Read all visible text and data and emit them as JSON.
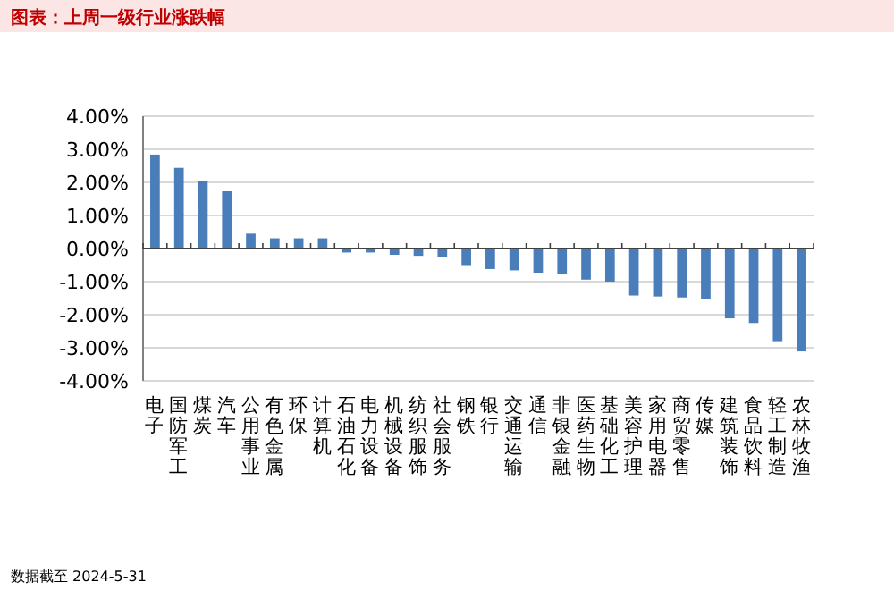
{
  "chart_data": {
    "type": "bar",
    "title": "图表：上周一级行业涨跌幅",
    "categories": [
      "电子",
      "国防军工",
      "煤炭",
      "汽车",
      "公用事业",
      "有色金属",
      "环保",
      "计算机",
      "石油石化",
      "电力设备",
      "机械设备",
      "纺织服饰",
      "社会服务",
      "钢铁",
      "银行",
      "交通运输",
      "通信",
      "非银金融",
      "医药生物",
      "基础化工",
      "美容护理",
      "家用电器",
      "商贸零售",
      "传媒",
      "建筑装饰",
      "食品饮料",
      "轻工制造",
      "农林牧渔"
    ],
    "values": [
      2.84,
      2.44,
      2.05,
      1.73,
      0.45,
      0.31,
      0.31,
      0.31,
      -0.12,
      -0.12,
      -0.19,
      -0.22,
      -0.25,
      -0.5,
      -0.62,
      -0.66,
      -0.73,
      -0.77,
      -0.94,
      -1.0,
      -1.42,
      -1.45,
      -1.48,
      -1.53,
      -2.11,
      -2.25,
      -2.8,
      -3.11
    ],
    "color": "#4a7ebb",
    "ylim": [
      -4,
      4
    ],
    "yticks": [
      {
        "value": -4,
        "label": "-4.00%"
      },
      {
        "value": -3,
        "label": "-3.00%"
      },
      {
        "value": -2,
        "label": "-2.00%"
      },
      {
        "value": -1,
        "label": "-1.00%"
      },
      {
        "value": 0,
        "label": "0.00%"
      },
      {
        "value": 1,
        "label": "1.00%"
      },
      {
        "value": 2,
        "label": "2.00%"
      },
      {
        "value": 3,
        "label": "3.00%"
      },
      {
        "value": 4,
        "label": "4.00%"
      }
    ],
    "grid": "y",
    "annotations": [
      "数据截至 2024-5-31"
    ]
  }
}
